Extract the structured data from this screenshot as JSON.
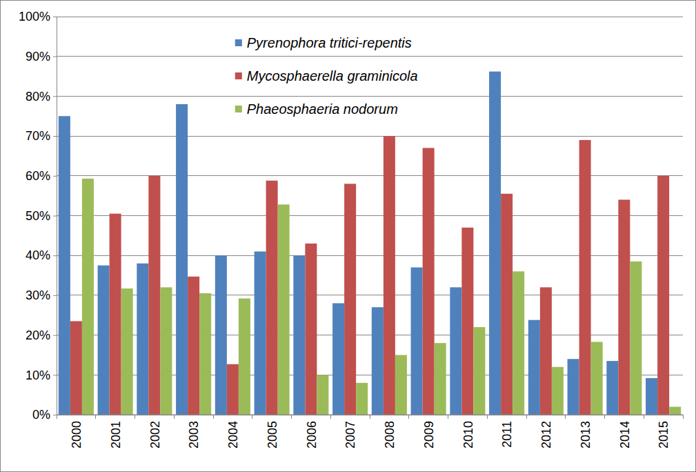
{
  "chart_data": {
    "type": "bar",
    "categories": [
      "2000",
      "2001",
      "2002",
      "2003",
      "2004",
      "2005",
      "2006",
      "2007",
      "2008",
      "2009",
      "2010",
      "2011",
      "2012",
      "2013",
      "2014",
      "2015"
    ],
    "series": [
      {
        "name": "Pyrenophora tritici-repentis",
        "color": "#4f81bd",
        "values": [
          75,
          37.5,
          38,
          78,
          40,
          41,
          40,
          28,
          27,
          37,
          32,
          86.2,
          23.8,
          14,
          13.5,
          9.2
        ]
      },
      {
        "name": "Mycosphaerella graminicola",
        "color": "#c0504d",
        "values": [
          23.5,
          50.5,
          60,
          34.7,
          12.7,
          58.8,
          43,
          58,
          70,
          67,
          47,
          55.5,
          32,
          69,
          54,
          60
        ]
      },
      {
        "name": "Phaeosphaeria nodorum",
        "color": "#9bbb59",
        "values": [
          59.3,
          31.7,
          32,
          30.5,
          29.2,
          52.8,
          10,
          8,
          15,
          18,
          22,
          36,
          12,
          18.3,
          38.5,
          2
        ]
      }
    ],
    "ylim": [
      0,
      100
    ],
    "yticks": [
      {
        "value": 0,
        "label": "0%"
      },
      {
        "value": 10,
        "label": "10%"
      },
      {
        "value": 20,
        "label": "20%"
      },
      {
        "value": 30,
        "label": "30%"
      },
      {
        "value": 40,
        "label": "40%"
      },
      {
        "value": 50,
        "label": "50%"
      },
      {
        "value": 60,
        "label": "60%"
      },
      {
        "value": 70,
        "label": "70%"
      },
      {
        "value": 80,
        "label": "80%"
      },
      {
        "value": 90,
        "label": "90%"
      },
      {
        "value": 100,
        "label": "100%"
      }
    ],
    "grid": true,
    "legend": "top"
  }
}
